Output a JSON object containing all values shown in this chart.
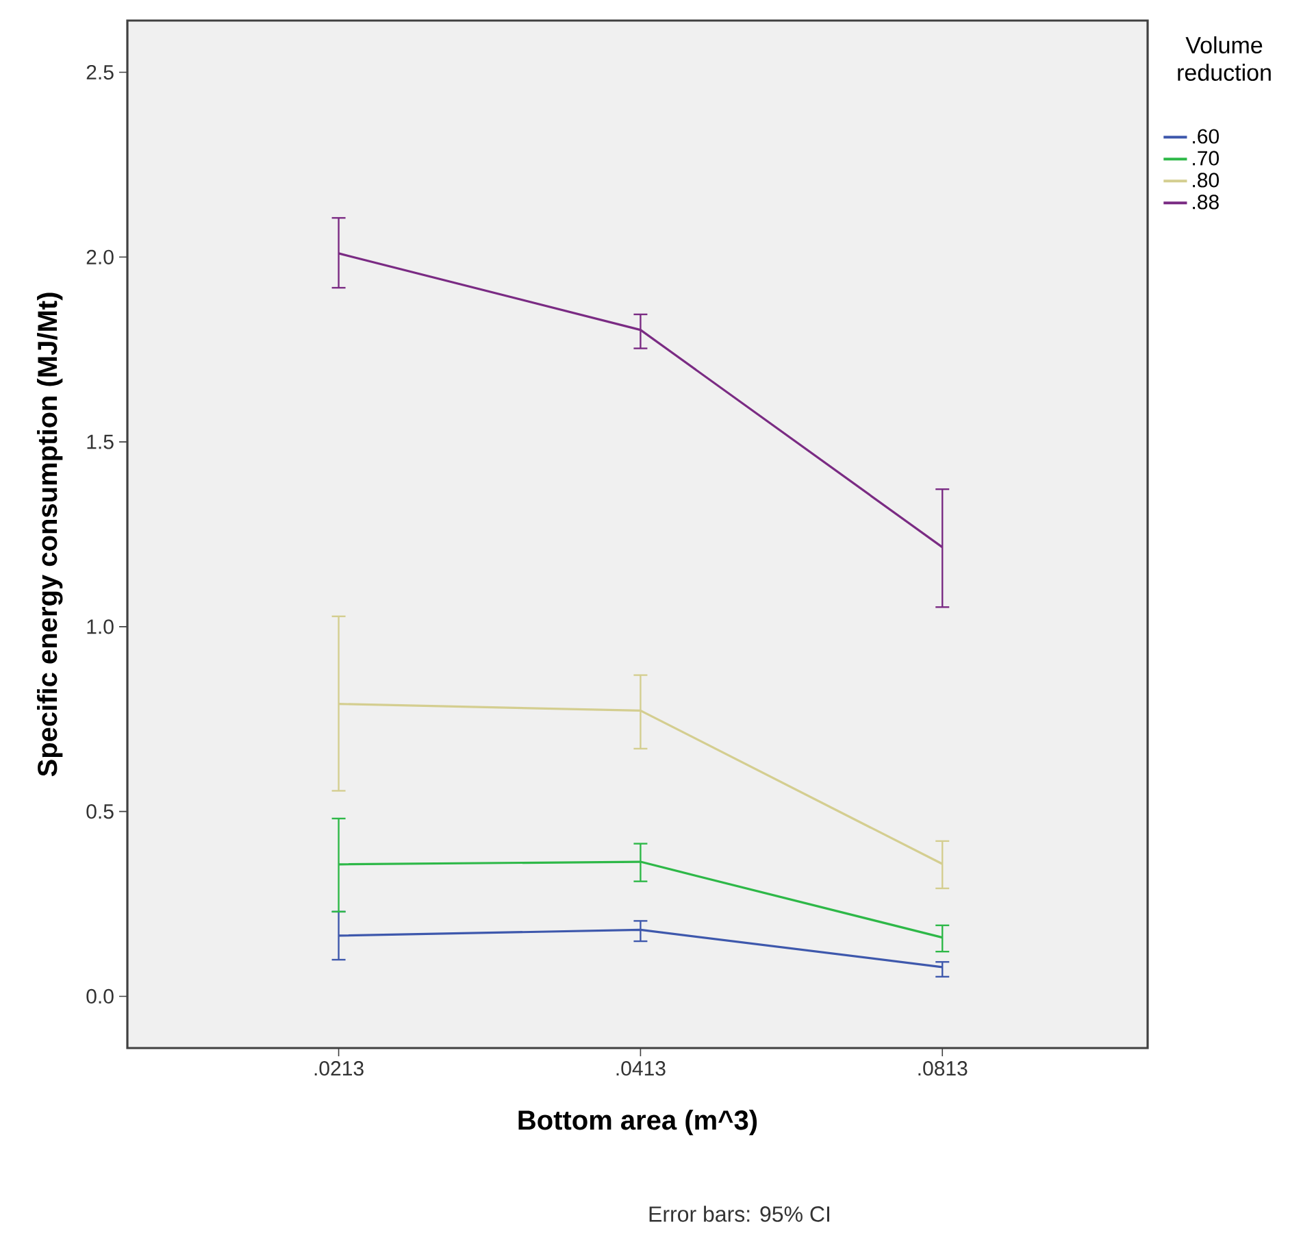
{
  "chart_data": {
    "type": "line",
    "categories": [
      ".0213",
      ".0413",
      ".0813"
    ],
    "xlabel": "Bottom area (m^3)",
    "ylabel": "Specific energy consumption (MJ/Mt)",
    "legend_title": "Volume reduction",
    "legend": "right",
    "ylim": [
      -0.14,
      2.64
    ],
    "yticks": [
      {
        "value": 0,
        "label": "0.0"
      },
      {
        "value": 0.5,
        "label": "0.5"
      },
      {
        "value": 1,
        "label": "1.0"
      },
      {
        "value": 1.5,
        "label": "1.5"
      },
      {
        "value": 2,
        "label": "2.0"
      },
      {
        "value": 2.5,
        "label": "2.5"
      }
    ],
    "grid": false,
    "marker": "none",
    "line_style": "solid",
    "annotations": [
      "Error bars: 95% CI"
    ],
    "series": [
      {
        "name": ".60",
        "color": "#3e58ac",
        "values": [
          0.164,
          0.18,
          0.079
        ],
        "errors": [
          [
            0.099,
            0.229
          ],
          [
            0.149,
            0.204
          ],
          [
            0.053,
            0.093
          ]
        ]
      },
      {
        "name": ".70",
        "color": "#2eb848",
        "values": [
          0.357,
          0.364,
          0.159
        ],
        "errors": [
          [
            0.229,
            0.481
          ],
          [
            0.311,
            0.413
          ],
          [
            0.121,
            0.192
          ]
        ]
      },
      {
        "name": ".80",
        "color": "#d4ce90",
        "values": [
          0.791,
          0.773,
          0.358
        ],
        "errors": [
          [
            0.556,
            1.028
          ],
          [
            0.67,
            0.869
          ],
          [
            0.292,
            0.42
          ]
        ]
      },
      {
        "name": ".88",
        "color": "#7a2b83",
        "values": [
          2.01,
          1.803,
          1.215
        ],
        "errors": [
          [
            1.917,
            2.106
          ],
          [
            1.753,
            1.845
          ],
          [
            1.053,
            1.372
          ]
        ]
      }
    ]
  }
}
